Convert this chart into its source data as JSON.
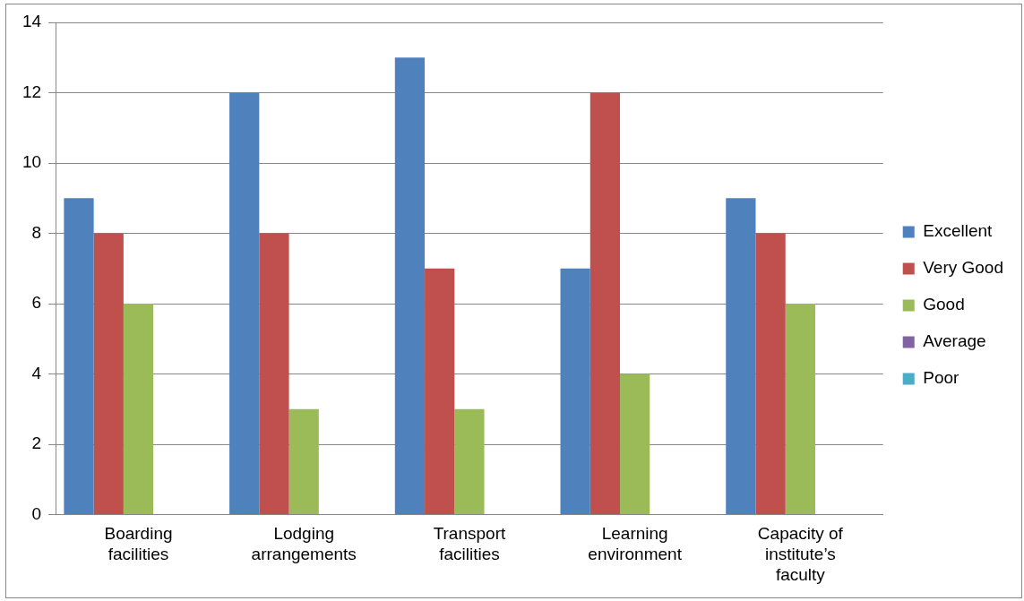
{
  "chart_data": {
    "type": "bar",
    "categories": [
      "Boarding facilities",
      "Lodging arrangements",
      "Transport facilities",
      "Learning environment",
      "Capacity of institute’s faculty"
    ],
    "series": [
      {
        "name": "Excellent",
        "color": "#4f81bd",
        "values": [
          9,
          12,
          13,
          7,
          9
        ]
      },
      {
        "name": "Very Good",
        "color": "#c0504d",
        "values": [
          8,
          8,
          7,
          12,
          8
        ]
      },
      {
        "name": "Good",
        "color": "#9bbb59",
        "values": [
          6,
          3,
          3,
          4,
          6
        ]
      },
      {
        "name": "Average",
        "color": "#8064a2",
        "values": [
          0,
          0,
          0,
          0,
          0
        ]
      },
      {
        "name": "Poor",
        "color": "#4bacc6",
        "values": [
          0,
          0,
          0,
          0,
          0
        ]
      }
    ],
    "ylim": [
      0,
      14
    ],
    "yticks": [
      0,
      2,
      4,
      6,
      8,
      10,
      12,
      14
    ],
    "grid": "y",
    "legend": "right"
  }
}
